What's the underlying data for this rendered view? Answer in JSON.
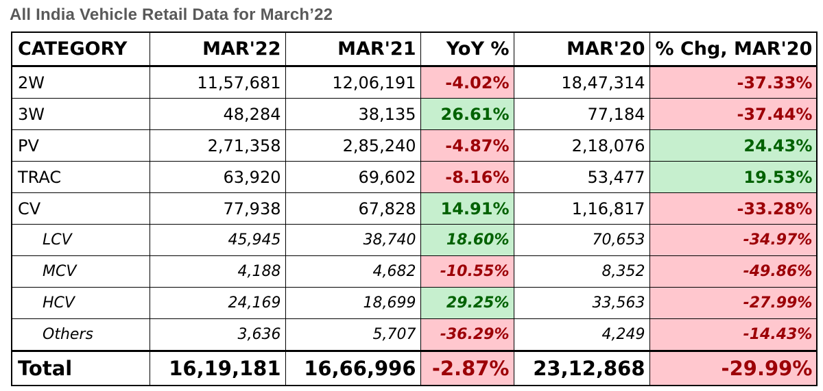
{
  "title": "All India Vehicle Retail Data for March’22",
  "headers": [
    "CATEGORY",
    "MAR'22",
    "MAR'21",
    "YoY %",
    "MAR'20",
    "% Chg, MAR'20"
  ],
  "rows": [
    {
      "category": "2W",
      "mar22": "11,57,681",
      "mar21": "12,06,191",
      "yoy": "-4.02%",
      "mar20": "18,47,314",
      "chg20": "-37.33%"
    },
    {
      "category": "3W",
      "mar22": "48,284",
      "mar21": "38,135",
      "yoy": "26.61%",
      "mar20": "77,184",
      "chg20": "-37.44%"
    },
    {
      "category": "PV",
      "mar22": "2,71,358",
      "mar21": "2,85,240",
      "yoy": "-4.87%",
      "mar20": "2,18,076",
      "chg20": "24.43%"
    },
    {
      "category": "TRAC",
      "mar22": "63,920",
      "mar21": "69,602",
      "yoy": "-8.16%",
      "mar20": "53,477",
      "chg20": "19.53%"
    },
    {
      "category": "CV",
      "mar22": "77,938",
      "mar21": "67,828",
      "yoy": "14.91%",
      "mar20": "1,16,817",
      "chg20": "-33.28%"
    },
    {
      "category": "LCV",
      "mar22": "45,945",
      "mar21": "38,740",
      "yoy": "18.60%",
      "mar20": "70,653",
      "chg20": "-34.97%"
    },
    {
      "category": "MCV",
      "mar22": "4,188",
      "mar21": "4,682",
      "yoy": "-10.55%",
      "mar20": "8,352",
      "chg20": "-49.86%"
    },
    {
      "category": "HCV",
      "mar22": "24,169",
      "mar21": "18,699",
      "yoy": "29.25%",
      "mar20": "33,563",
      "chg20": "-27.99%"
    },
    {
      "category": "Others",
      "mar22": "3,636",
      "mar21": "5,707",
      "yoy": "-36.29%",
      "mar20": "4,249",
      "chg20": "-14.43%"
    }
  ],
  "total": {
    "category": "Total",
    "mar22": "16,19,181",
    "mar21": "16,66,996",
    "yoy": "-2.87%",
    "mar20": "23,12,868",
    "chg20": "-29.99%"
  },
  "colors": {
    "negative_fill": "#ffc7ce",
    "negative_text": "#9c0006",
    "positive_fill": "#c6efce",
    "positive_text": "#006100",
    "title_text": "#595959"
  }
}
